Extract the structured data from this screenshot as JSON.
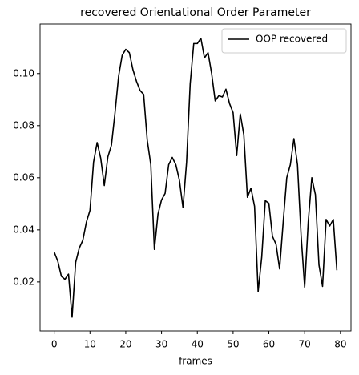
{
  "chart_data": {
    "type": "line",
    "title": "recovered Orientational Order Parameter",
    "xlabel": "frames",
    "x": [
      0,
      1,
      2,
      3,
      4,
      5,
      6,
      7,
      8,
      9,
      10,
      11,
      12,
      13,
      14,
      15,
      16,
      17,
      18,
      19,
      20,
      21,
      22,
      23,
      24,
      25,
      26,
      27,
      28,
      29,
      30,
      31,
      32,
      33,
      34,
      35,
      36,
      37,
      38,
      39,
      40,
      41,
      42,
      43,
      44,
      45,
      46,
      47,
      48,
      49,
      50,
      51,
      52,
      53,
      54,
      55,
      56,
      57,
      58,
      59,
      60,
      61,
      62,
      63,
      64,
      65,
      66,
      67,
      68,
      69,
      70,
      71,
      72,
      73,
      74,
      75,
      76,
      77,
      78,
      79
    ],
    "series": [
      {
        "name": "OOP recovered",
        "color": "#000000",
        "values": [
          0.0315,
          0.028,
          0.0222,
          0.021,
          0.023,
          0.0065,
          0.0275,
          0.033,
          0.036,
          0.043,
          0.0475,
          0.066,
          0.0735,
          0.0675,
          0.057,
          0.068,
          0.0725,
          0.085,
          0.099,
          0.107,
          0.1093,
          0.108,
          0.1015,
          0.097,
          0.0935,
          0.092,
          0.0745,
          0.065,
          0.0325,
          0.046,
          0.0515,
          0.054,
          0.065,
          0.0678,
          0.065,
          0.059,
          0.0485,
          0.066,
          0.096,
          0.1115,
          0.1115,
          0.1135,
          0.106,
          0.108,
          0.1,
          0.0895,
          0.0915,
          0.091,
          0.094,
          0.0885,
          0.085,
          0.0685,
          0.0845,
          0.0765,
          0.0525,
          0.056,
          0.049,
          0.0163,
          0.0295,
          0.0512,
          0.0502,
          0.0375,
          0.0345,
          0.025,
          0.043,
          0.06,
          0.065,
          0.075,
          0.065,
          0.038,
          0.018,
          0.043,
          0.06,
          0.0535,
          0.0265,
          0.0183,
          0.044,
          0.0415,
          0.044,
          0.0245
        ]
      }
    ],
    "xlim": [
      -3.95,
      82.95
    ],
    "xticks": [
      0,
      10,
      20,
      30,
      40,
      50,
      60,
      70,
      80
    ],
    "ylim": [
      0.0012,
      0.119
    ],
    "yticks": [
      0.02,
      0.04,
      0.06,
      0.08,
      {
        "value": 0.1,
        "label": "0.10"
      }
    ],
    "legend": "upper right",
    "grid": false
  }
}
